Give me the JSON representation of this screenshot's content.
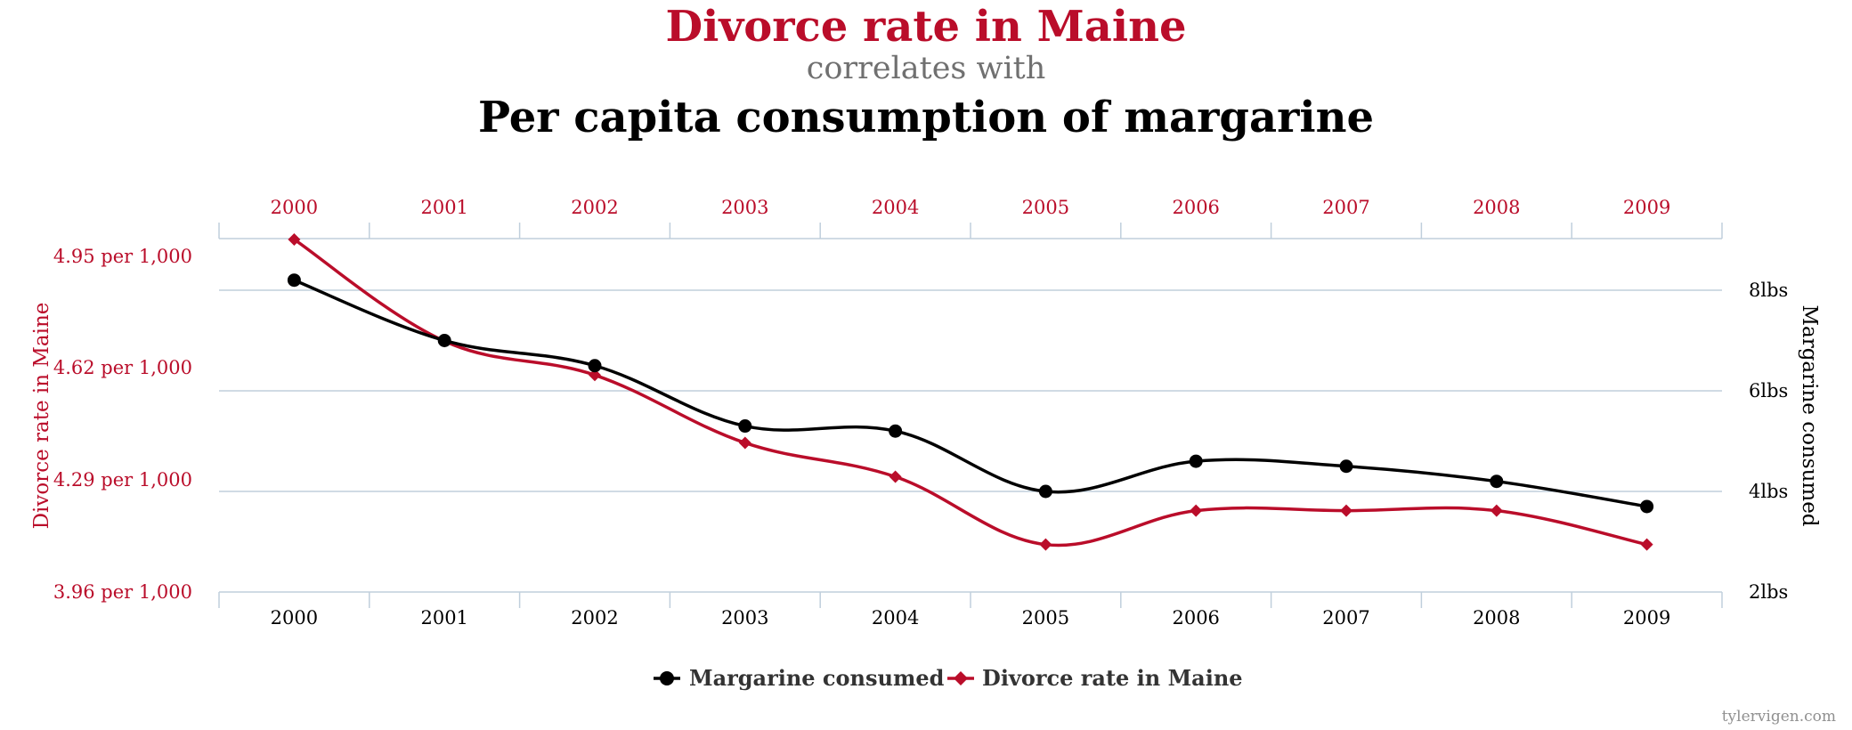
{
  "title": {
    "line1": "Divorce rate in Maine",
    "line2": "correlates with",
    "line3": "Per capita consumption of margarine"
  },
  "credit": "tylervigen.com",
  "colors": {
    "divorce": "#ba0d2a",
    "margarine": "#000000",
    "subtitle": "#707070",
    "grid": "#c0cfdc",
    "credit": "#909090"
  },
  "chart_data": {
    "type": "line",
    "x": [
      "2000",
      "2001",
      "2002",
      "2003",
      "2004",
      "2005",
      "2006",
      "2007",
      "2008",
      "2009"
    ],
    "series": [
      {
        "name": "Margarine consumed",
        "axis": "right",
        "color": "#000000",
        "marker": "circle",
        "values": [
          8.2,
          7.0,
          6.5,
          5.3,
          5.2,
          4.0,
          4.6,
          4.5,
          4.2,
          3.7
        ]
      },
      {
        "name": "Divorce rate in Maine",
        "axis": "left",
        "color": "#ba0d2a",
        "marker": "diamond",
        "values": [
          5.0,
          4.7,
          4.6,
          4.4,
          4.3,
          4.1,
          4.2,
          4.2,
          4.2,
          4.1
        ]
      }
    ],
    "left_axis": {
      "label": "Divorce rate in Maine",
      "ticks": [
        "4.95 per 1,000",
        "4.62 per 1,000",
        "4.29 per 1,000",
        "3.96 per 1,000"
      ],
      "range": [
        3.96,
        5.04
      ]
    },
    "right_axis": {
      "label": "Margarine consumed",
      "ticks": [
        "8lbs",
        "6lbs",
        "4lbs",
        "2lbs"
      ],
      "range": [
        2,
        8
      ]
    },
    "x_ticks_top": [
      "2000",
      "2001",
      "2002",
      "2003",
      "2004",
      "2005",
      "2006",
      "2007",
      "2008",
      "2009"
    ],
    "x_ticks_bottom": [
      "2000",
      "2001",
      "2002",
      "2003",
      "2004",
      "2005",
      "2006",
      "2007",
      "2008",
      "2009"
    ],
    "legend": {
      "placement": "bottom-center",
      "items": [
        "Margarine consumed",
        "Divorce rate in Maine"
      ]
    },
    "grid": true
  }
}
